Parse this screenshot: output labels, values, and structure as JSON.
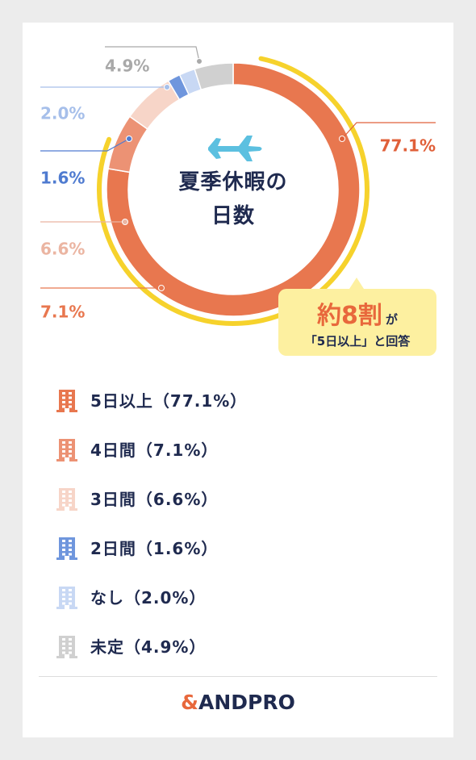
{
  "chart_data": {
    "type": "donut",
    "title": "夏季休暇の日数",
    "categories": [
      "5日以上（77.1%）",
      "4日間（7.1%）",
      "3日間（6.6%）",
      "2日間（1.6%）",
      "なし（2.0%）",
      "未定（4.9%）"
    ],
    "values": [
      77.1,
      7.1,
      6.6,
      1.6,
      2.0,
      4.9
    ],
    "value_labels": [
      "77.1%",
      "7.1%",
      "6.6%",
      "1.6%",
      "2.0%",
      "4.9%"
    ],
    "colors": [
      "#e8774f",
      "#ec9274",
      "#f7d5c8",
      "#6f96dd",
      "#c8d8f4",
      "#d0d0d0"
    ],
    "label_colors": [
      "#e0603a",
      "#e8774f",
      "#ebb5a2",
      "#4f7bd0",
      "#a6bfea",
      "#a9a9a9"
    ],
    "annotation": {
      "highlight": "約8割",
      "suffix": "が",
      "text": "「5日以上」と回答"
    }
  },
  "footer": {
    "logo_mark": "&",
    "name": "ANDPRO"
  }
}
